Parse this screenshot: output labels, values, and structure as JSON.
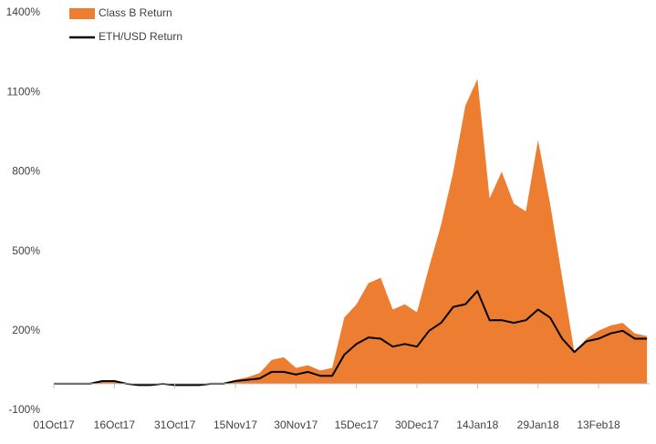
{
  "chart_data": {
    "type": "line",
    "categories": [
      "01Oct17",
      null,
      null,
      null,
      null,
      "16Oct17",
      null,
      null,
      null,
      null,
      "31Oct17",
      null,
      null,
      null,
      null,
      "15Nov17",
      null,
      null,
      null,
      null,
      "30Nov17",
      null,
      null,
      null,
      null,
      "15Dec17",
      null,
      null,
      null,
      null,
      "30Dec17",
      null,
      null,
      null,
      null,
      "14Jan18",
      null,
      null,
      null,
      null,
      "29Jan18",
      null,
      null,
      null,
      null,
      "13Feb18",
      null,
      null,
      null,
      null
    ],
    "series": [
      {
        "name": "Class B Return",
        "type": "area",
        "color": "#ed7d31",
        "values": [
          0,
          0,
          0,
          0,
          10,
          15,
          0,
          -5,
          -5,
          0,
          -5,
          -5,
          -5,
          0,
          0,
          15,
          25,
          40,
          90,
          100,
          60,
          70,
          50,
          60,
          250,
          300,
          380,
          400,
          280,
          300,
          270,
          440,
          600,
          800,
          1050,
          1150,
          700,
          800,
          680,
          650,
          920,
          680,
          400,
          120,
          170,
          200,
          220,
          230,
          190,
          180
        ]
      },
      {
        "name": "ETH/USD Return",
        "type": "line",
        "color": "#000000",
        "values": [
          0,
          0,
          0,
          0,
          10,
          10,
          0,
          -5,
          -5,
          0,
          -5,
          -5,
          -5,
          0,
          0,
          10,
          15,
          20,
          45,
          45,
          35,
          45,
          30,
          30,
          110,
          150,
          175,
          170,
          140,
          150,
          140,
          200,
          230,
          290,
          300,
          350,
          240,
          240,
          230,
          240,
          280,
          250,
          170,
          120,
          160,
          170,
          190,
          200,
          170,
          170
        ]
      }
    ],
    "ylim": [
      -100,
      1400
    ],
    "yticks": [
      {
        "value": -100,
        "label": "-100%"
      },
      {
        "value": 200,
        "label": "200%"
      },
      {
        "value": 500,
        "label": "500%"
      },
      {
        "value": 800,
        "label": "800%"
      },
      {
        "value": 1100,
        "label": "1100%"
      },
      {
        "value": 1400,
        "label": "1400%"
      }
    ],
    "grid": false
  }
}
